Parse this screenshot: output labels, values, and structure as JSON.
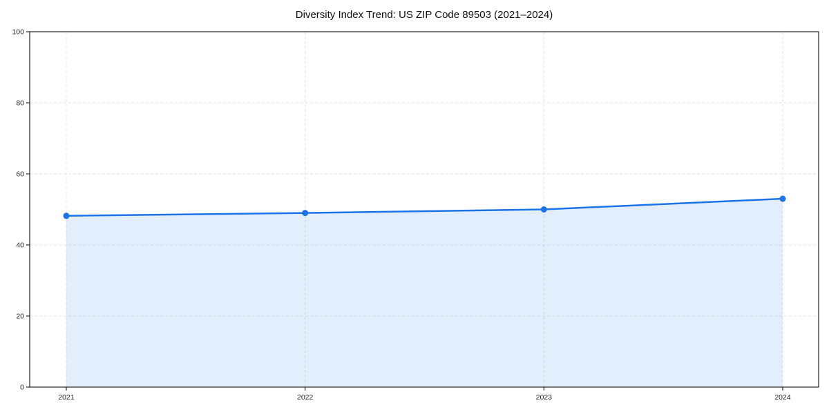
{
  "page": {
    "background": "#ffffff"
  },
  "chart_data": {
    "type": "line",
    "title": "Diversity Index Trend: US ZIP Code 89503 (2021–2024)",
    "categories": [
      "2021",
      "2022",
      "2023",
      "2024"
    ],
    "series": [
      {
        "name": "Diversity Index",
        "values": [
          48.2,
          49.0,
          50.0,
          53.0
        ]
      }
    ],
    "xlabel": "",
    "ylabel": "",
    "ylim": [
      0,
      100
    ],
    "yticks": [
      0,
      20,
      40,
      60,
      80,
      100
    ],
    "grid": true,
    "grid_style": "dashed",
    "area_fill": true,
    "legend": "none",
    "marker": "circle",
    "colors": {
      "line": "#1a73e8",
      "marker": "#1a73e8",
      "fill": "rgba(26,115,232,0.12)",
      "grid": "#e3e3e3",
      "spine": "#262626",
      "tick_label": "#262626",
      "title": "#111111"
    }
  }
}
